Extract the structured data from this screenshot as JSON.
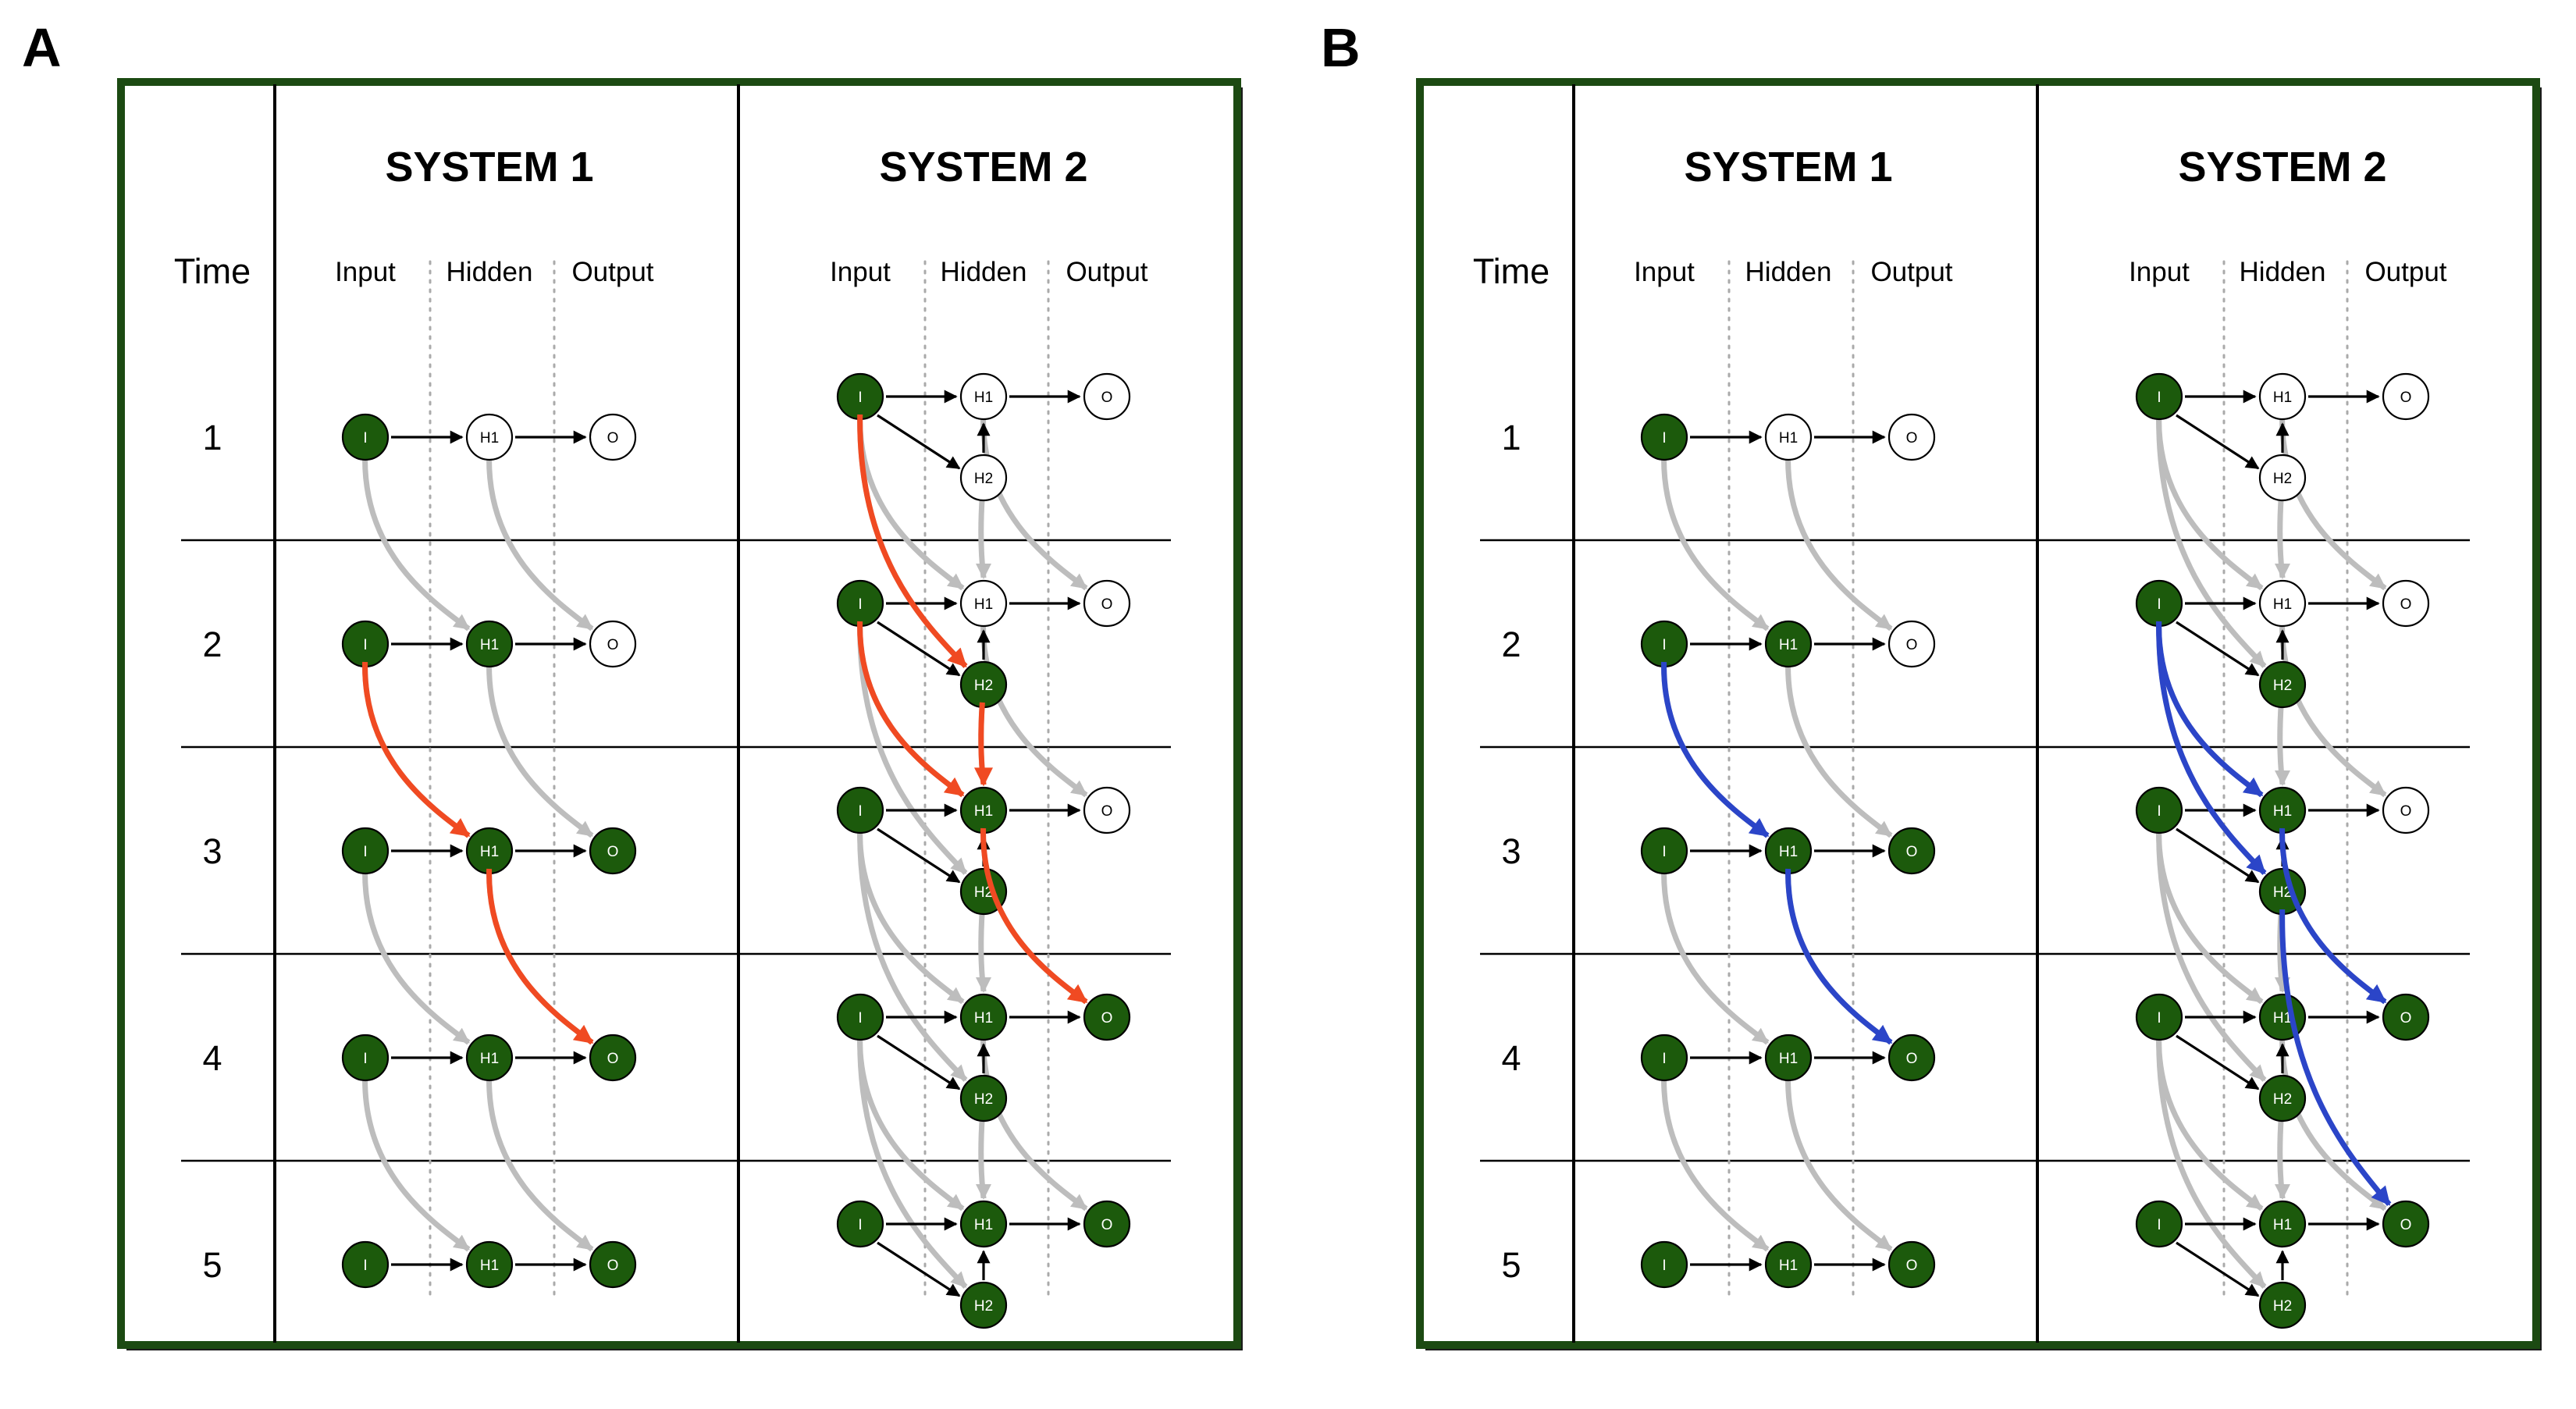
{
  "panels": [
    {
      "letter": "A",
      "highlight_color": "#f04a22",
      "headers": {
        "time": "Time",
        "system1": "SYSTEM 1",
        "system2": "SYSTEM 2"
      },
      "column_labels": [
        "Input",
        "Hidden",
        "Output"
      ],
      "time_steps": [
        "1",
        "2",
        "3",
        "4",
        "5"
      ],
      "highlight_system1": [
        [
          "I",
          2,
          "H1",
          3
        ],
        [
          "H1",
          3,
          "O",
          4
        ]
      ],
      "highlight_system2": [
        [
          "I",
          1,
          "H2",
          2
        ],
        [
          "I",
          2,
          "H1",
          3
        ],
        [
          "H2",
          2,
          "H1",
          3
        ],
        [
          "H1",
          3,
          "O",
          4
        ]
      ]
    },
    {
      "letter": "B",
      "highlight_color": "#2b45c8",
      "headers": {
        "time": "Time",
        "system1": "SYSTEM 1",
        "system2": "SYSTEM 2"
      },
      "column_labels": [
        "Input",
        "Hidden",
        "Output"
      ],
      "time_steps": [
        "1",
        "2",
        "3",
        "4",
        "5"
      ],
      "highlight_system1": [
        [
          "I",
          2,
          "H1",
          3
        ],
        [
          "H1",
          3,
          "O",
          4
        ]
      ],
      "highlight_system2": [
        [
          "I",
          2,
          "H1",
          3
        ],
        [
          "I",
          2,
          "H2",
          3
        ],
        [
          "H1",
          3,
          "O",
          4
        ],
        [
          "H2",
          3,
          "O",
          5
        ]
      ]
    }
  ],
  "nodes": {
    "input": "I",
    "hidden_1": "H1",
    "hidden_2": "H2",
    "output": "O"
  },
  "system1_active": {
    "I": [
      1,
      2,
      3,
      4,
      5
    ],
    "H1": [
      2,
      3,
      4,
      5
    ],
    "O": [
      3,
      4,
      5
    ]
  },
  "system2_active": {
    "I": [
      1,
      2,
      3,
      4,
      5
    ],
    "H1": [
      3,
      4,
      5
    ],
    "H2": [
      2,
      3,
      4,
      5
    ],
    "O": [
      4,
      5
    ]
  },
  "colors": {
    "active_node": "#1c5a0c",
    "frame_border": "#1c4a12",
    "recurrent_edge": "#bdbdbd",
    "feedforward_edge": "#000000"
  }
}
